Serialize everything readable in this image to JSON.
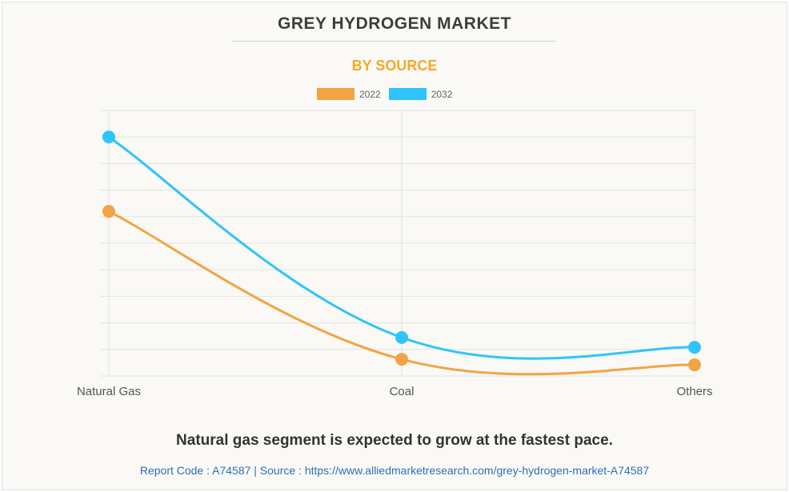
{
  "chart_data": {
    "type": "line",
    "title": "GREY HYDROGEN MARKET",
    "subtitle": "BY SOURCE",
    "categories": [
      "Natural Gas",
      "Coal",
      "Others"
    ],
    "series": [
      {
        "name": "2022",
        "color": "#f2a444",
        "values": [
          6.2,
          0.63,
          0.42
        ]
      },
      {
        "name": "2032",
        "color": "#2fc4fb",
        "values": [
          9.0,
          1.45,
          1.08
        ]
      }
    ],
    "ylim": [
      0,
      10
    ],
    "y_tick_labels_shown": false,
    "grid": true,
    "legend": "top-center",
    "smooth": true
  },
  "caption": "Natural gas segment is expected to grow at the fastest pace.",
  "footer": "Report Code : A74587  |  Source : https://www.alliedmarketresearch.com/grey-hydrogen-market-A74587"
}
